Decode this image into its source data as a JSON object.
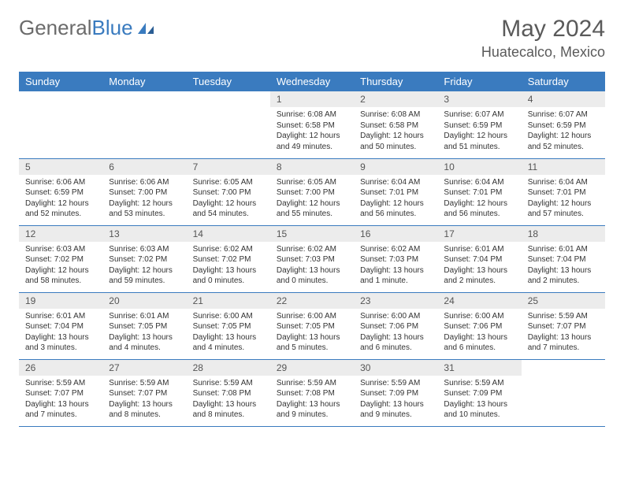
{
  "brand": {
    "name_part1": "General",
    "name_part2": "Blue"
  },
  "title": "May 2024",
  "location": "Huatecalco, Mexico",
  "colors": {
    "header_bg": "#3a7bbf",
    "header_text": "#ffffff",
    "daynum_bg": "#ececec",
    "row_border": "#3a7bbf",
    "body_text": "#333333",
    "title_text": "#5a5a5a"
  },
  "dow": [
    "Sunday",
    "Monday",
    "Tuesday",
    "Wednesday",
    "Thursday",
    "Friday",
    "Saturday"
  ],
  "weeks": [
    [
      null,
      null,
      null,
      {
        "n": "1",
        "sunrise": "6:08 AM",
        "sunset": "6:58 PM",
        "daylight": "12 hours and 49 minutes."
      },
      {
        "n": "2",
        "sunrise": "6:08 AM",
        "sunset": "6:58 PM",
        "daylight": "12 hours and 50 minutes."
      },
      {
        "n": "3",
        "sunrise": "6:07 AM",
        "sunset": "6:59 PM",
        "daylight": "12 hours and 51 minutes."
      },
      {
        "n": "4",
        "sunrise": "6:07 AM",
        "sunset": "6:59 PM",
        "daylight": "12 hours and 52 minutes."
      }
    ],
    [
      {
        "n": "5",
        "sunrise": "6:06 AM",
        "sunset": "6:59 PM",
        "daylight": "12 hours and 52 minutes."
      },
      {
        "n": "6",
        "sunrise": "6:06 AM",
        "sunset": "7:00 PM",
        "daylight": "12 hours and 53 minutes."
      },
      {
        "n": "7",
        "sunrise": "6:05 AM",
        "sunset": "7:00 PM",
        "daylight": "12 hours and 54 minutes."
      },
      {
        "n": "8",
        "sunrise": "6:05 AM",
        "sunset": "7:00 PM",
        "daylight": "12 hours and 55 minutes."
      },
      {
        "n": "9",
        "sunrise": "6:04 AM",
        "sunset": "7:01 PM",
        "daylight": "12 hours and 56 minutes."
      },
      {
        "n": "10",
        "sunrise": "6:04 AM",
        "sunset": "7:01 PM",
        "daylight": "12 hours and 56 minutes."
      },
      {
        "n": "11",
        "sunrise": "6:04 AM",
        "sunset": "7:01 PM",
        "daylight": "12 hours and 57 minutes."
      }
    ],
    [
      {
        "n": "12",
        "sunrise": "6:03 AM",
        "sunset": "7:02 PM",
        "daylight": "12 hours and 58 minutes."
      },
      {
        "n": "13",
        "sunrise": "6:03 AM",
        "sunset": "7:02 PM",
        "daylight": "12 hours and 59 minutes."
      },
      {
        "n": "14",
        "sunrise": "6:02 AM",
        "sunset": "7:02 PM",
        "daylight": "13 hours and 0 minutes."
      },
      {
        "n": "15",
        "sunrise": "6:02 AM",
        "sunset": "7:03 PM",
        "daylight": "13 hours and 0 minutes."
      },
      {
        "n": "16",
        "sunrise": "6:02 AM",
        "sunset": "7:03 PM",
        "daylight": "13 hours and 1 minute."
      },
      {
        "n": "17",
        "sunrise": "6:01 AM",
        "sunset": "7:04 PM",
        "daylight": "13 hours and 2 minutes."
      },
      {
        "n": "18",
        "sunrise": "6:01 AM",
        "sunset": "7:04 PM",
        "daylight": "13 hours and 2 minutes."
      }
    ],
    [
      {
        "n": "19",
        "sunrise": "6:01 AM",
        "sunset": "7:04 PM",
        "daylight": "13 hours and 3 minutes."
      },
      {
        "n": "20",
        "sunrise": "6:01 AM",
        "sunset": "7:05 PM",
        "daylight": "13 hours and 4 minutes."
      },
      {
        "n": "21",
        "sunrise": "6:00 AM",
        "sunset": "7:05 PM",
        "daylight": "13 hours and 4 minutes."
      },
      {
        "n": "22",
        "sunrise": "6:00 AM",
        "sunset": "7:05 PM",
        "daylight": "13 hours and 5 minutes."
      },
      {
        "n": "23",
        "sunrise": "6:00 AM",
        "sunset": "7:06 PM",
        "daylight": "13 hours and 6 minutes."
      },
      {
        "n": "24",
        "sunrise": "6:00 AM",
        "sunset": "7:06 PM",
        "daylight": "13 hours and 6 minutes."
      },
      {
        "n": "25",
        "sunrise": "5:59 AM",
        "sunset": "7:07 PM",
        "daylight": "13 hours and 7 minutes."
      }
    ],
    [
      {
        "n": "26",
        "sunrise": "5:59 AM",
        "sunset": "7:07 PM",
        "daylight": "13 hours and 7 minutes."
      },
      {
        "n": "27",
        "sunrise": "5:59 AM",
        "sunset": "7:07 PM",
        "daylight": "13 hours and 8 minutes."
      },
      {
        "n": "28",
        "sunrise": "5:59 AM",
        "sunset": "7:08 PM",
        "daylight": "13 hours and 8 minutes."
      },
      {
        "n": "29",
        "sunrise": "5:59 AM",
        "sunset": "7:08 PM",
        "daylight": "13 hours and 9 minutes."
      },
      {
        "n": "30",
        "sunrise": "5:59 AM",
        "sunset": "7:09 PM",
        "daylight": "13 hours and 9 minutes."
      },
      {
        "n": "31",
        "sunrise": "5:59 AM",
        "sunset": "7:09 PM",
        "daylight": "13 hours and 10 minutes."
      },
      null
    ]
  ],
  "labels": {
    "sunrise": "Sunrise:",
    "sunset": "Sunset:",
    "daylight": "Daylight:"
  }
}
